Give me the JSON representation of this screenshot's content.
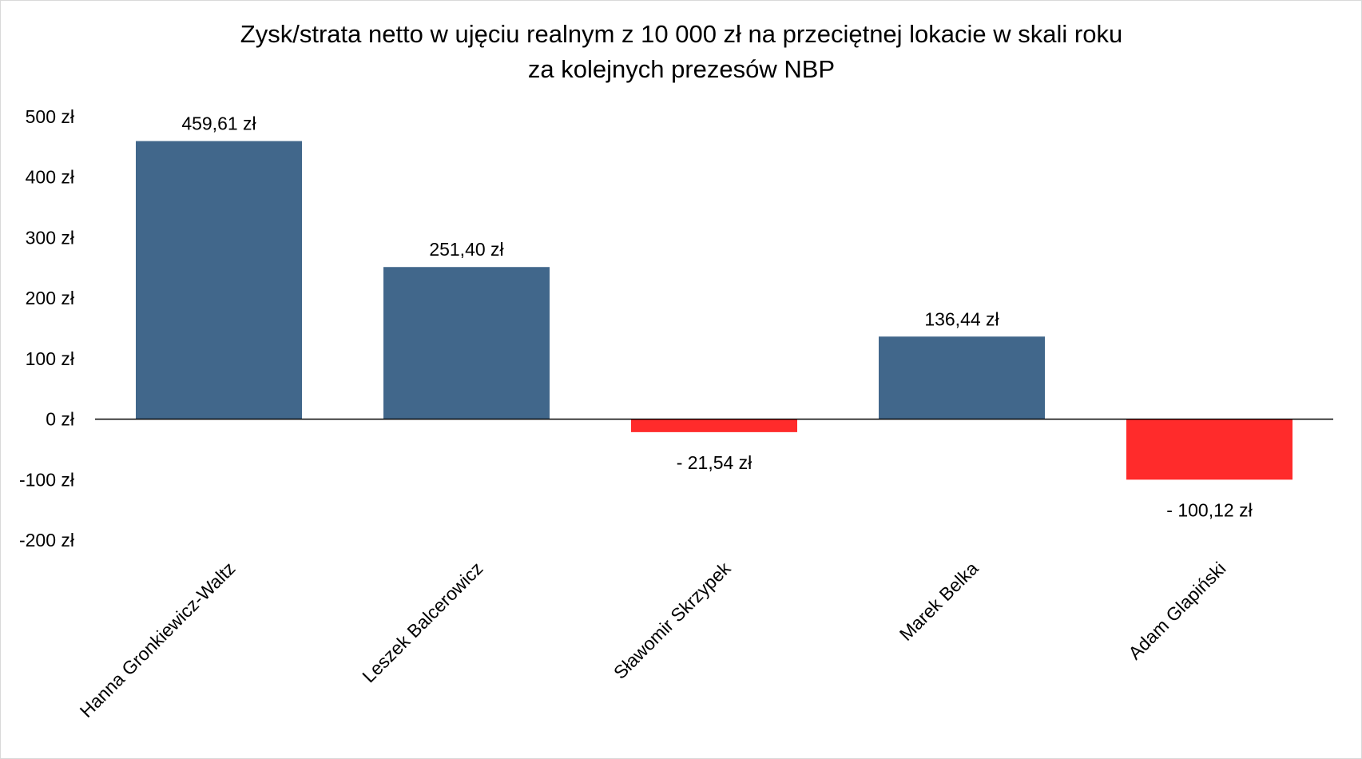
{
  "chart_data": {
    "type": "bar",
    "title_lines": [
      "Zysk/strata netto w ujęciu realnym z 10 000 zł na przeciętnej lokacie w skali roku",
      "za kolejnych prezesów NBP"
    ],
    "categories": [
      "Hanna Gronkiewicz-Waltz",
      "Leszek Balcerowicz",
      "Sławomir Skrzypek",
      "Marek Belka",
      "Adam Glapiński"
    ],
    "values": [
      459.61,
      251.4,
      -21.54,
      136.44,
      -100.12
    ],
    "value_labels": [
      "459,61 zł",
      "251,40 zł",
      "- 21,54 zł",
      "136,44 zł",
      "- 100,12 zł"
    ],
    "y_ticks": [
      500,
      400,
      300,
      200,
      100,
      0,
      -100,
      -200
    ],
    "y_tick_labels": [
      "500 zł",
      "400 zł",
      "300 zł",
      "200 zł",
      "100 zł",
      "0 zł",
      "-100 zł",
      "-200 zł"
    ],
    "ylim": [
      -200,
      500
    ],
    "grid": false,
    "legend": "none",
    "colors": {
      "positive": "#41678b",
      "negative": "#ff2b2b",
      "axis": "#000000"
    }
  }
}
